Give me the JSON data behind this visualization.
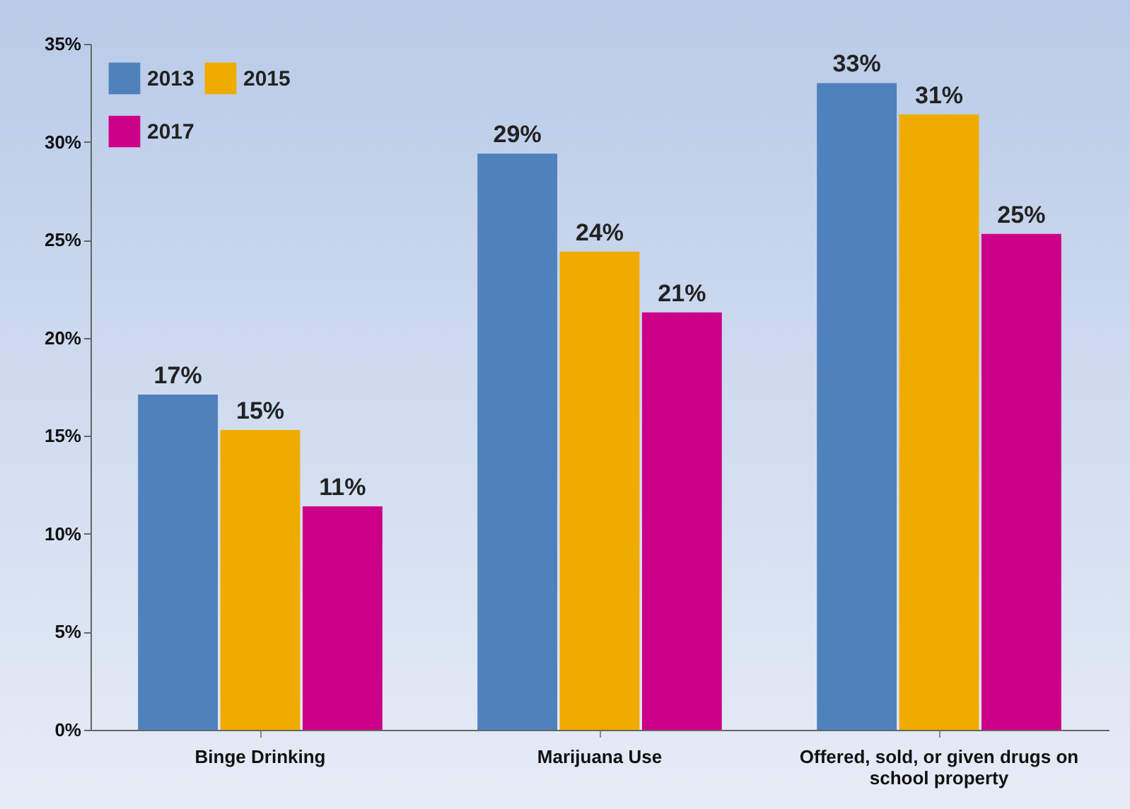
{
  "chart_data": {
    "type": "bar",
    "categories": [
      "Binge Drinking",
      "Marijuana Use",
      "Offered, sold, or given drugs on school property"
    ],
    "series": [
      {
        "name": "2013",
        "color": "#4f81bd",
        "values": [
          17.1,
          29.4,
          33.0
        ],
        "value_labels": [
          "17%",
          "29%",
          "33%"
        ]
      },
      {
        "name": "2015",
        "color": "#f0ab00",
        "values": [
          15.3,
          24.4,
          31.4
        ],
        "value_labels": [
          "15%",
          "24%",
          "31%"
        ]
      },
      {
        "name": "2017",
        "color": "#cc0088",
        "values": [
          11.4,
          21.3,
          25.3
        ],
        "value_labels": [
          "11%",
          "21%",
          "25%"
        ]
      }
    ],
    "ylim": [
      0,
      35
    ],
    "yticks": [
      {
        "value": 0,
        "label": "0%"
      },
      {
        "value": 5,
        "label": "5%"
      },
      {
        "value": 10,
        "label": "10%"
      },
      {
        "value": 15,
        "label": "15%"
      },
      {
        "value": 20,
        "label": "20%"
      },
      {
        "value": 25,
        "label": "25%"
      },
      {
        "value": 30,
        "label": "30%"
      },
      {
        "value": 35,
        "label": "35%"
      }
    ],
    "grid": false,
    "legend": "top left"
  }
}
